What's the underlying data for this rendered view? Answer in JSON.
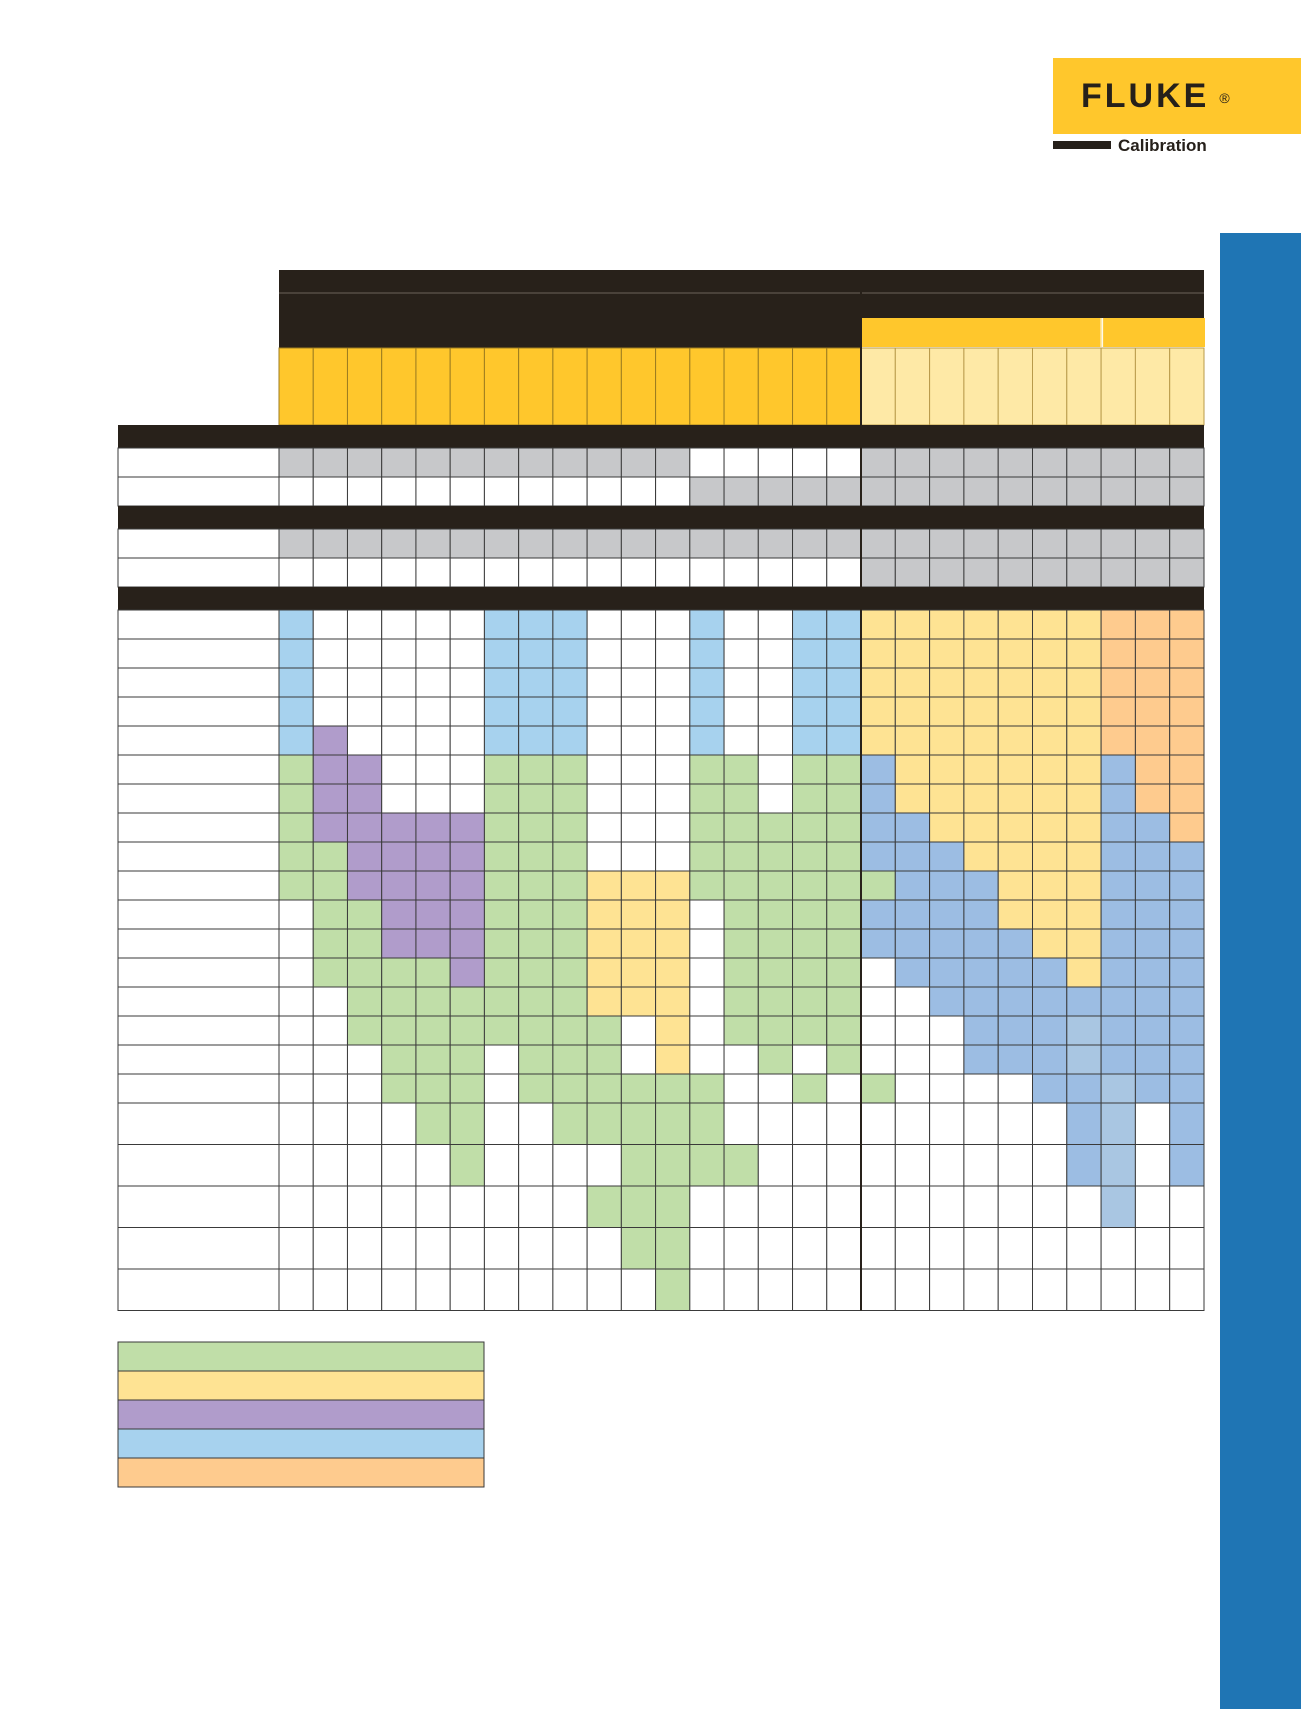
{
  "brand": {
    "name": "FLUKE",
    "registered": "®",
    "subtitle": "Calibration"
  },
  "colors": {
    "dark": "#28211a",
    "yellow": "#ffc72c",
    "pale_yellow": "#fee9a6",
    "gray": "#c7c8ca",
    "grid": "#3a3a3a",
    "side_band": "#1f75b4"
  },
  "palette": {
    "W": "#ffffff",
    "G": "#c7c8ca",
    "g": "#c0dea8",
    "y": "#fee393",
    "p": "#b09ccb",
    "b": "#a7d2ee",
    "o": "#fecb8e",
    "B": "#9cbde3",
    "s": "#a9c6e2"
  },
  "legend_colors": [
    "#c0dea8",
    "#fee393",
    "#b09ccb",
    "#a7d2ee",
    "#fecb8e"
  ],
  "rows": [
    {
      "type": "section"
    },
    {
      "type": "data",
      "cells": "GGGGGGGGGGGGWWWWWGGGGGGGGGG"
    },
    {
      "type": "data",
      "cells": "WWWWWWWWWWWWGGGGGGGGGGGGGGG"
    },
    {
      "type": "section"
    },
    {
      "type": "data",
      "cells": "GGGGGGGGGGGGGGGGGGGGGGGGGGG"
    },
    {
      "type": "data",
      "cells": "WWWWWWWWWWWWWWWWWGGGGGGGGGG"
    },
    {
      "type": "section"
    },
    {
      "type": "data",
      "cells": "bWWWWWbbbWWWbWWbbyyyyyyyooo"
    },
    {
      "type": "data",
      "cells": "bWWWWWbbbWWWbWWbbyyyyyyyooo"
    },
    {
      "type": "data",
      "cells": "bWWWWWbbbWWWbWWbbyyyyyyyooo"
    },
    {
      "type": "data",
      "cells": "bWWWWWbbbWWWbWWbbyyyyyyyooo"
    },
    {
      "type": "data",
      "cells": "bpWWWWbbbWWWbWWbbyyyyyyyooo"
    },
    {
      "type": "data",
      "cells": "gppWWWgggWWWggWggByyyyyyBoo"
    },
    {
      "type": "data",
      "cells": "gppWWWgggWWWggWggByyyyyyBoo"
    },
    {
      "type": "data",
      "cells": "gpppppgggWWWgggggBByyyyyBBo"
    },
    {
      "type": "data",
      "cells": "ggppppgggWWWgggggBBByyyyBBB"
    },
    {
      "type": "data",
      "cells": "ggppppgggyyyggggggBBByyyBBB"
    },
    {
      "type": "data",
      "cells": "WggpppgggyyyWggggBBBByyyBBB"
    },
    {
      "type": "data",
      "cells": "WggpppgggyyyWggggBBBBByyBBB"
    },
    {
      "type": "data",
      "cells": "WggggpgggyyyWggggWBBBBByBBB"
    },
    {
      "type": "data",
      "cells": "WWgggggggyyyWggggWWBBBBBBBB"
    },
    {
      "type": "data",
      "cells": "WWggggggggWyWggggWWWBBBsBBB"
    },
    {
      "type": "data",
      "cells": "WWWgggWgggWyWWgWgWWWBBBsBBB"
    },
    {
      "type": "data",
      "cells": "WWWgggWggggggWWgWgWWWWBBsBBB"
    },
    {
      "type": "data",
      "cells": "WWWWggWWgggggWWWWWWWWWWBsWBB",
      "tall": true
    },
    {
      "type": "data",
      "cells": "WWWWWgWWWWggggWWWWWWWWWBsWBB",
      "tall": true
    },
    {
      "type": "data",
      "cells": "WWWWWWWWWgggWWWWWWWWWWWWsWWB",
      "tall": true
    },
    {
      "type": "data",
      "cells": "WWWWWWWWWWggWWWWWWWWWWWWWWWW",
      "tall": true
    },
    {
      "type": "data",
      "cells": "WWWWWWWWWWWgWWWWWWWWWWWWWWWW",
      "tall": true
    }
  ]
}
